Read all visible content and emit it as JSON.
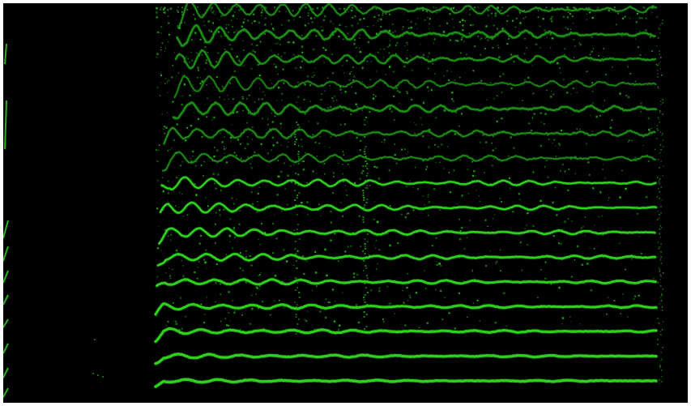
{
  "image": {
    "background_color": "#000000",
    "border_color": "#ffffff",
    "trace_color": "#2fd21f",
    "dim_trace_color": "#1f8f14",
    "speckle_color": "#26b318"
  },
  "traces": {
    "count": 16
  }
}
